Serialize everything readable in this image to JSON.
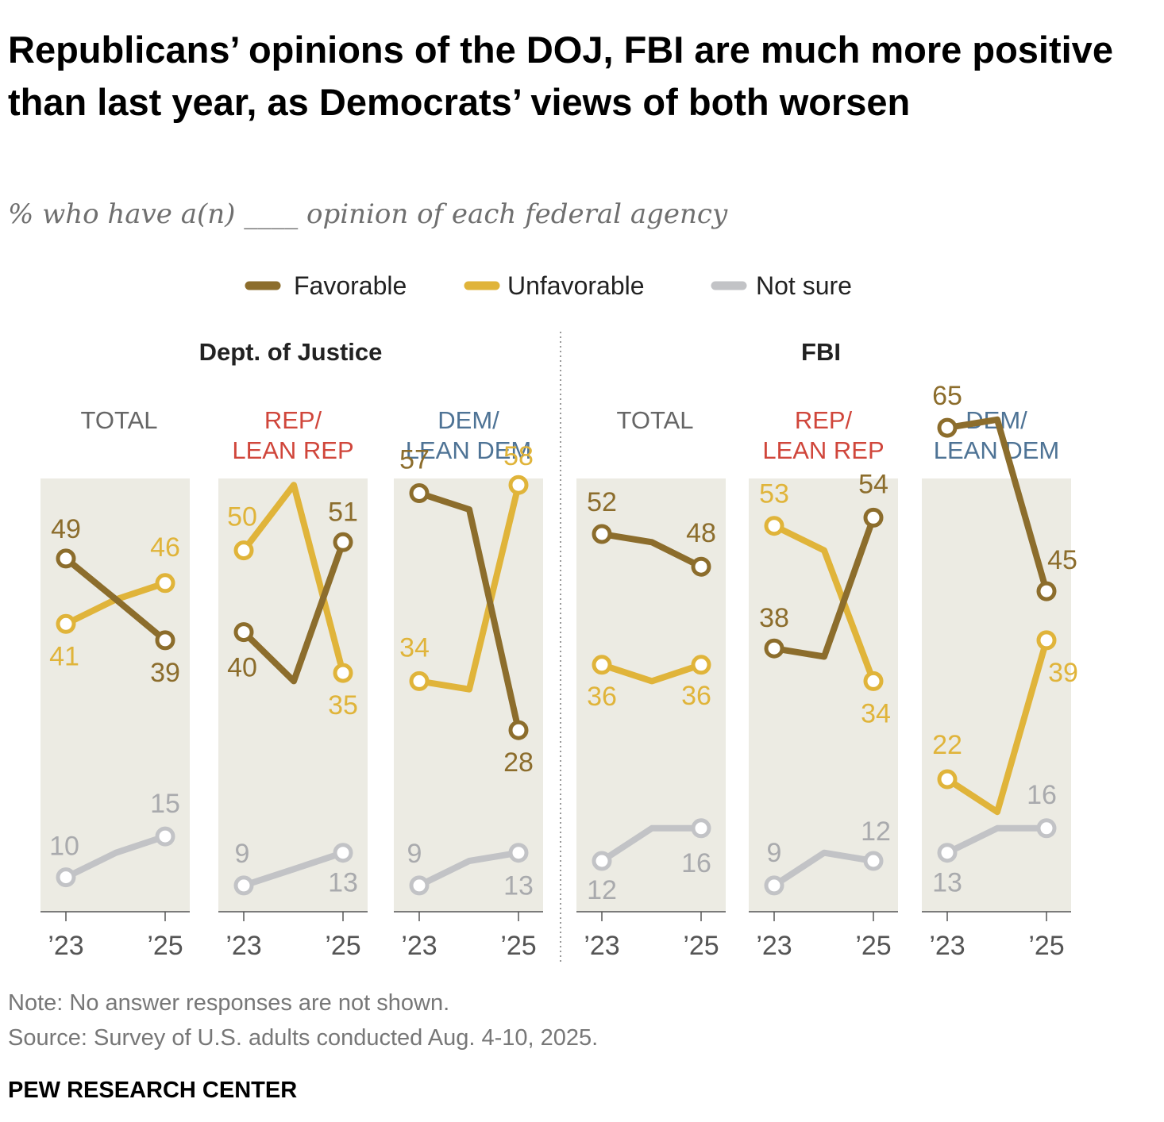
{
  "title": "Republicans’ opinions of the DOJ, FBI are much more positive than last year, as Democrats’ views of both worsen",
  "subtitle": "% who have a(n) ____ opinion of each federal agency",
  "note": "Note: No answer responses are not shown.",
  "source": "Source: Survey of U.S. adults conducted Aug. 4-10, 2025.",
  "brand": "PEW RESEARCH CENTER",
  "colors": {
    "favorable": "#8c6d2c",
    "unfavorable": "#e0b43a",
    "not_sure": "#c2c3c6",
    "panel_bg": "#ecebe3",
    "rep": "#d0463b",
    "dem": "#4e7395",
    "total": "#666666"
  },
  "chart_data": {
    "type": "line",
    "y_axis_range": [
      0,
      100
    ],
    "x_tick_labels": [
      "’23",
      "’25"
    ],
    "legend": {
      "placement": "top",
      "items": [
        {
          "label": "Favorable",
          "key": "favorable"
        },
        {
          "label": "Unfavorable",
          "key": "unfavorable"
        },
        {
          "label": "Not sure",
          "key": "not_sure"
        }
      ]
    },
    "agencies": [
      {
        "name": "Dept. of Justice",
        "groups": [
          {
            "label_lines": [
              "TOTAL"
            ],
            "color_key": "total",
            "series": [
              {
                "key": "favorable",
                "values": [
                  49,
                  39
                ],
                "mid": 44
              },
              {
                "key": "unfavorable",
                "values": [
                  41,
                  46
                ],
                "mid": 44
              },
              {
                "key": "not_sure",
                "values": [
                  10,
                  15
                ],
                "mid": 13
              }
            ]
          },
          {
            "label_lines": [
              "REP/",
              "LEAN REP"
            ],
            "color_key": "rep",
            "series": [
              {
                "key": "favorable",
                "values": [
                  40,
                  51
                ],
                "mid": 34
              },
              {
                "key": "unfavorable",
                "values": [
                  50,
                  35
                ],
                "mid": 58
              },
              {
                "key": "not_sure",
                "values": [
                  9,
                  13
                ],
                "mid": 11
              }
            ]
          },
          {
            "label_lines": [
              "DEM/",
              "LEAN DEM"
            ],
            "color_key": "dem",
            "series": [
              {
                "key": "favorable",
                "values": [
                  57,
                  28
                ],
                "mid": 55
              },
              {
                "key": "unfavorable",
                "values": [
                  34,
                  58
                ],
                "mid": 33
              },
              {
                "key": "not_sure",
                "values": [
                  9,
                  13
                ],
                "mid": 12
              }
            ]
          }
        ]
      },
      {
        "name": "FBI",
        "groups": [
          {
            "label_lines": [
              "TOTAL"
            ],
            "color_key": "total",
            "series": [
              {
                "key": "favorable",
                "values": [
                  52,
                  48
                ],
                "mid": 51
              },
              {
                "key": "unfavorable",
                "values": [
                  36,
                  36
                ],
                "mid": 34
              },
              {
                "key": "not_sure",
                "values": [
                  12,
                  16
                ],
                "mid": 16
              }
            ]
          },
          {
            "label_lines": [
              "REP/",
              "LEAN REP"
            ],
            "color_key": "rep",
            "series": [
              {
                "key": "favorable",
                "values": [
                  38,
                  54
                ],
                "mid": 37
              },
              {
                "key": "unfavorable",
                "values": [
                  53,
                  34
                ],
                "mid": 50
              },
              {
                "key": "not_sure",
                "values": [
                  9,
                  12
                ],
                "mid": 13
              }
            ]
          },
          {
            "label_lines": [
              "DEM/",
              "LEAN DEM"
            ],
            "color_key": "dem",
            "series": [
              {
                "key": "favorable",
                "values": [
                  65,
                  45
                ],
                "mid": 66
              },
              {
                "key": "unfavorable",
                "values": [
                  22,
                  39
                ],
                "mid": 18
              },
              {
                "key": "not_sure",
                "values": [
                  13,
                  16
                ],
                "mid": 16
              }
            ]
          }
        ]
      }
    ]
  }
}
